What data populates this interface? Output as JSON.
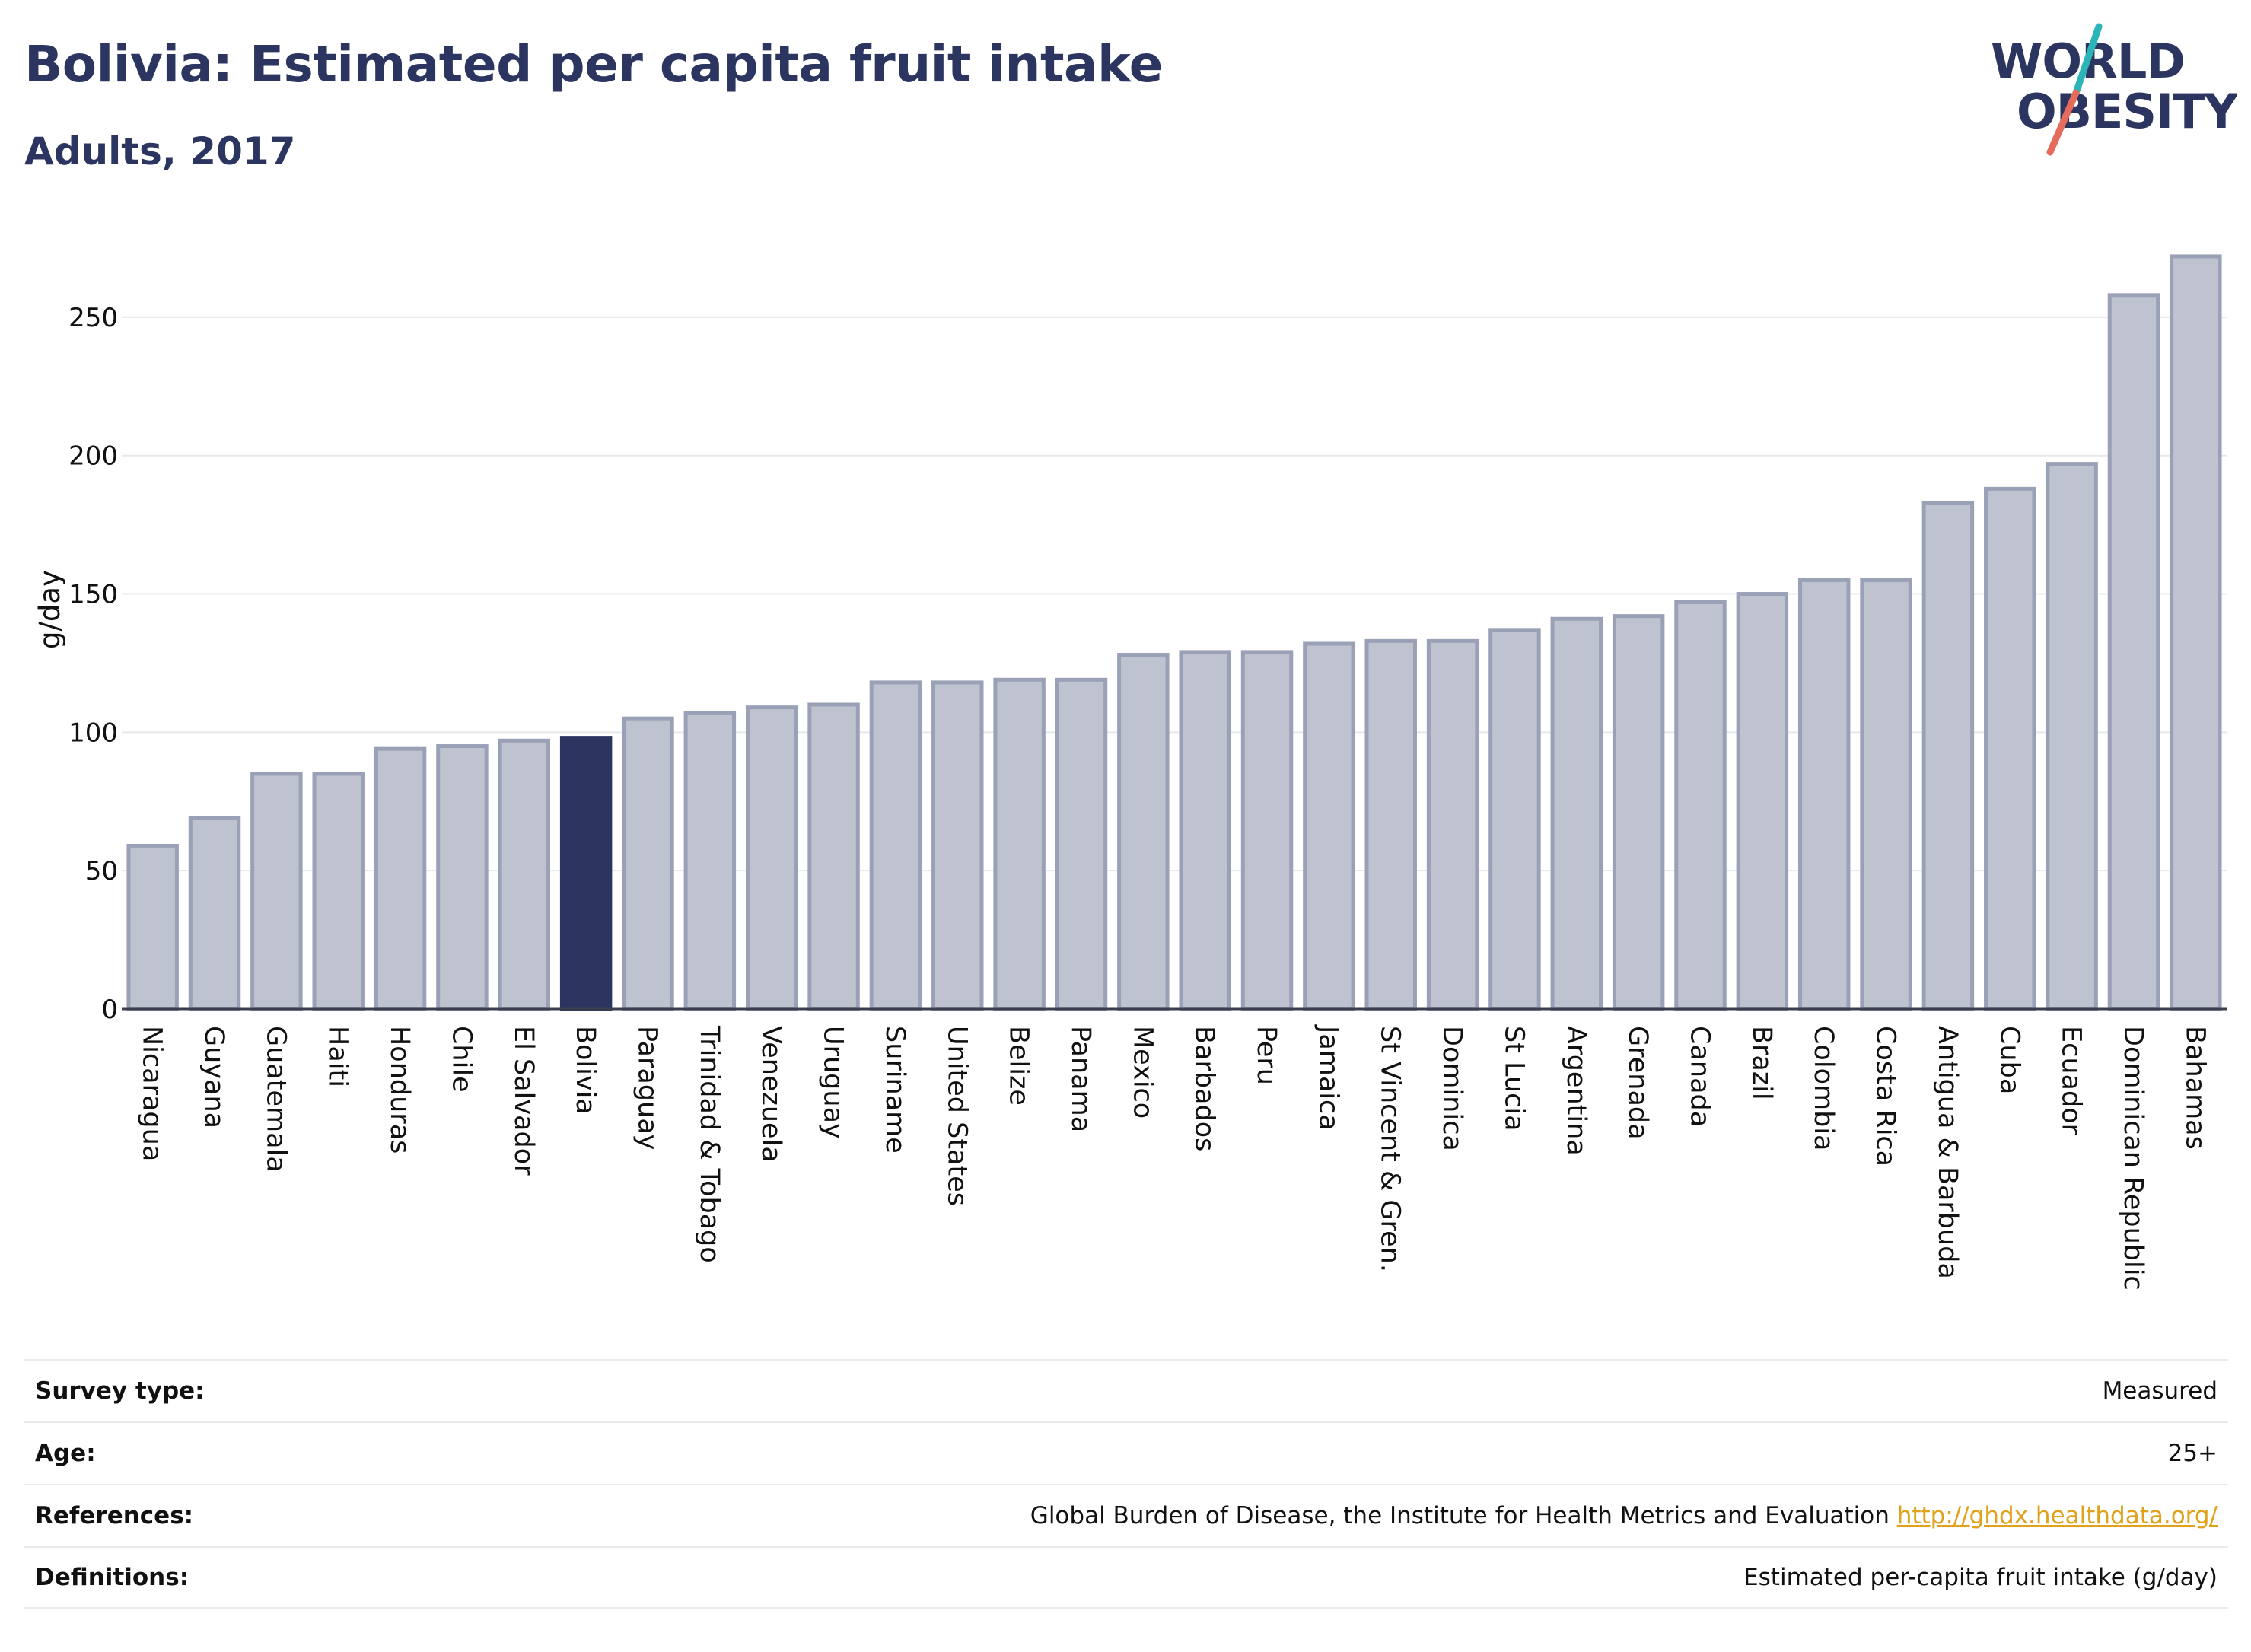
{
  "header": {
    "title": "Bolivia: Estimated per capita fruit intake",
    "subtitle": "Adults, 2017"
  },
  "logo": {
    "line1": "WORLD",
    "line2": "OBESITY",
    "colors": {
      "text": "#2b3560",
      "teal": "#2bb5b8",
      "coral": "#e56b5d"
    }
  },
  "chart_data": {
    "type": "bar",
    "ylabel": "g/day",
    "xlabel": "",
    "ylim": [
      0,
      275
    ],
    "yticks": [
      0,
      50,
      100,
      150,
      200,
      250
    ],
    "grid": true,
    "highlight": "Bolivia",
    "colors": {
      "bar": "#bfc3d0",
      "bar_edge": "#9aa0b6",
      "highlight": "#2b3560",
      "grid": "#e6e8ec"
    },
    "categories": [
      "Nicaragua",
      "Guyana",
      "Guatemala",
      "Haiti",
      "Honduras",
      "Chile",
      "El Salvador",
      "Bolivia",
      "Paraguay",
      "Trinidad & Tobago",
      "Venezuela",
      "Uruguay",
      "Suriname",
      "United States",
      "Belize",
      "Panama",
      "Mexico",
      "Barbados",
      "Peru",
      "Jamaica",
      "St Vincent & Gren.",
      "Dominica",
      "St Lucia",
      "Argentina",
      "Grenada",
      "Canada",
      "Brazil",
      "Colombia",
      "Costa Rica",
      "Antigua & Barbuda",
      "Cuba",
      "Ecuador",
      "Dominican Republic",
      "Bahamas"
    ],
    "values": [
      59,
      69,
      85,
      85,
      94,
      95,
      97,
      98,
      105,
      107,
      109,
      110,
      118,
      118,
      119,
      119,
      128,
      129,
      129,
      132,
      133,
      133,
      137,
      141,
      142,
      147,
      150,
      155,
      155,
      183,
      188,
      197,
      258,
      272
    ]
  },
  "meta": {
    "survey_type_label": "Survey type:",
    "survey_type_value": "Measured",
    "age_label": "Age:",
    "age_value": "25+",
    "references_label": "References:",
    "references_value": "Global Burden of Disease, the Institute for Health Metrics and Evaluation",
    "references_link": "http://ghdx.healthdata.org/",
    "definitions_label": "Definitions:",
    "definitions_value": "Estimated per-capita fruit intake (g/day)"
  }
}
